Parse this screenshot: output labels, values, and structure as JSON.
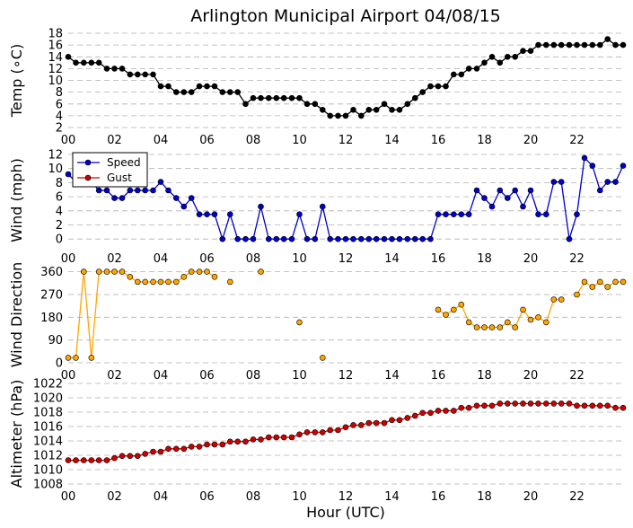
{
  "chart_data": {
    "type": "line",
    "title": "Arlington Municipal Airport 04/08/15",
    "xlabel": "Hour (UTC)",
    "x_ticks": [
      "00",
      "02",
      "04",
      "06",
      "08",
      "10",
      "12",
      "14",
      "16",
      "18",
      "20",
      "22"
    ],
    "xlim": [
      0,
      24
    ],
    "panels": [
      {
        "id": "temp",
        "ylabel": "Temp (∘C)",
        "ylim": [
          2,
          18
        ],
        "yticks": [
          2,
          4,
          6,
          8,
          10,
          12,
          14,
          16,
          18
        ],
        "series": [
          {
            "name": "Temperature",
            "color": "#000000",
            "style": "line-markers",
            "x": [
              0,
              0.33,
              0.67,
              1,
              1.33,
              1.67,
              2,
              2.33,
              2.67,
              3,
              3.33,
              3.67,
              4,
              4.33,
              4.67,
              5,
              5.33,
              5.67,
              6,
              6.33,
              6.67,
              7,
              7.33,
              7.67,
              8,
              8.33,
              8.67,
              9,
              9.33,
              9.67,
              10,
              10.33,
              10.67,
              11,
              11.33,
              11.67,
              12,
              12.33,
              12.67,
              13,
              13.33,
              13.67,
              14,
              14.33,
              14.67,
              15,
              15.33,
              15.67,
              16,
              16.33,
              16.67,
              17,
              17.33,
              17.67,
              18,
              18.33,
              18.67,
              19,
              19.33,
              19.67,
              20,
              20.33,
              20.67,
              21,
              21.33,
              21.67,
              22,
              22.33,
              22.67,
              23,
              23.33,
              23.67,
              24
            ],
            "y": [
              14,
              13,
              13,
              13,
              13,
              12,
              12,
              12,
              11,
              11,
              11,
              11,
              9,
              9,
              8,
              8,
              8,
              9,
              9,
              9,
              8,
              8,
              8,
              6,
              7,
              7,
              7,
              7,
              7,
              7,
              7,
              6,
              6,
              5,
              4,
              4,
              4,
              5,
              4,
              5,
              5,
              6,
              5,
              5,
              6,
              7,
              8,
              9,
              9,
              9,
              11,
              11,
              12,
              12,
              13,
              14,
              13,
              14,
              14,
              15,
              15,
              16,
              16,
              16,
              16,
              16,
              16,
              16,
              16,
              16,
              17,
              16,
              16
            ]
          }
        ]
      },
      {
        "id": "wind",
        "ylabel": "Wind (mph)",
        "ylim": [
          -1,
          12
        ],
        "yticks": [
          0,
          2,
          4,
          6,
          8,
          10,
          12
        ],
        "legend": {
          "location": "upper-left",
          "entries": [
            "Speed",
            "Gust"
          ]
        },
        "series": [
          {
            "name": "Speed",
            "color": "#0000cc",
            "style": "line-markers",
            "x": [
              0,
              0.33,
              0.67,
              1,
              1.33,
              1.67,
              2,
              2.33,
              2.67,
              3,
              3.33,
              3.67,
              4,
              4.33,
              4.67,
              5,
              5.33,
              5.67,
              6,
              6.33,
              6.67,
              7,
              7.33,
              7.67,
              8,
              8.33,
              8.67,
              9,
              9.33,
              9.67,
              10,
              10.33,
              10.67,
              11,
              11.33,
              11.67,
              12,
              12.33,
              12.67,
              13,
              13.33,
              13.67,
              14,
              14.33,
              14.67,
              15,
              15.33,
              15.67,
              16,
              16.33,
              16.67,
              17,
              17.33,
              17.67,
              18,
              18.33,
              18.67,
              19,
              19.33,
              19.67,
              20,
              20.33,
              20.67,
              21,
              21.33,
              21.67,
              22,
              22.33,
              22.67,
              23,
              23.33,
              23.67,
              24
            ],
            "y": [
              9.2,
              8.1,
              8.1,
              8.1,
              6.9,
              6.9,
              5.8,
              5.8,
              6.9,
              6.9,
              6.9,
              6.9,
              8.1,
              6.9,
              5.8,
              4.6,
              5.8,
              3.5,
              3.5,
              3.5,
              0,
              3.5,
              0,
              0,
              0,
              4.6,
              0,
              0,
              0,
              0,
              3.5,
              0,
              0,
              4.6,
              0,
              0,
              0,
              0,
              0,
              0,
              0,
              0,
              0,
              0,
              0,
              0,
              0,
              0,
              3.5,
              3.5,
              3.5,
              3.5,
              3.5,
              6.9,
              5.8,
              4.6,
              6.9,
              5.8,
              6.9,
              4.6,
              6.9,
              3.5,
              3.5,
              8.1,
              8.1,
              0,
              3.5,
              11.5,
              10.4,
              6.9,
              8.1,
              8.1,
              10.4
            ]
          },
          {
            "name": "Gust",
            "color": "#cc0000",
            "style": "markers",
            "x": [],
            "y": []
          }
        ]
      },
      {
        "id": "dir",
        "ylabel": "Wind Direction",
        "ylim": [
          0,
          380
        ],
        "yticks": [
          0,
          90,
          180,
          270,
          360
        ],
        "series": [
          {
            "name": "Wind Direction",
            "color": "#ffa500",
            "style": "line-markers-gapped",
            "x": [
              0,
              0.33,
              0.67,
              1,
              1.33,
              1.67,
              2,
              2.33,
              2.67,
              3,
              3.33,
              3.67,
              4,
              4.33,
              4.67,
              5,
              5.33,
              5.67,
              6,
              6.33,
              6.67,
              7,
              7.33,
              7.67,
              8,
              8.33,
              8.67,
              9,
              9.33,
              9.67,
              10,
              10.33,
              10.67,
              11,
              11.33,
              11.67,
              12,
              12.33,
              12.67,
              13,
              13.33,
              13.67,
              14,
              14.33,
              14.67,
              15,
              15.33,
              15.67,
              16,
              16.33,
              16.67,
              17,
              17.33,
              17.67,
              18,
              18.33,
              18.67,
              19,
              19.33,
              19.67,
              20,
              20.33,
              20.67,
              21,
              21.33,
              21.67,
              22,
              22.33,
              22.67,
              23,
              23.33,
              23.67,
              24
            ],
            "y": [
              20,
              20,
              360,
              20,
              360,
              360,
              360,
              360,
              340,
              320,
              320,
              320,
              320,
              320,
              320,
              340,
              360,
              360,
              360,
              340,
              null,
              320,
              null,
              null,
              null,
              360,
              null,
              null,
              null,
              null,
              160,
              null,
              null,
              20,
              null,
              null,
              null,
              null,
              null,
              null,
              null,
              null,
              null,
              null,
              null,
              null,
              null,
              null,
              210,
              190,
              210,
              230,
              160,
              140,
              140,
              140,
              140,
              160,
              140,
              210,
              170,
              180,
              160,
              250,
              250,
              null,
              270,
              320,
              300,
              320,
              300,
              320,
              320
            ]
          }
        ]
      },
      {
        "id": "alt",
        "ylabel": "Altimeter (hPa)",
        "ylim": [
          1008,
          1022
        ],
        "yticks": [
          1008,
          1010,
          1012,
          1014,
          1016,
          1018,
          1020,
          1022
        ],
        "series": [
          {
            "name": "Altimeter",
            "color": "#cc0000",
            "style": "line-markers",
            "x": [
              0,
              0.33,
              0.67,
              1,
              1.33,
              1.67,
              2,
              2.33,
              2.67,
              3,
              3.33,
              3.67,
              4,
              4.33,
              4.67,
              5,
              5.33,
              5.67,
              6,
              6.33,
              6.67,
              7,
              7.33,
              7.67,
              8,
              8.33,
              8.67,
              9,
              9.33,
              9.67,
              10,
              10.33,
              10.67,
              11,
              11.33,
              11.67,
              12,
              12.33,
              12.67,
              13,
              13.33,
              13.67,
              14,
              14.33,
              14.67,
              15,
              15.33,
              15.67,
              16,
              16.33,
              16.67,
              17,
              17.33,
              17.67,
              18,
              18.33,
              18.67,
              19,
              19.33,
              19.67,
              20,
              20.33,
              20.67,
              21,
              21.33,
              21.67,
              22,
              22.33,
              22.67,
              23,
              23.33,
              23.67,
              24
            ],
            "y": [
              1011.3,
              1011.3,
              1011.3,
              1011.3,
              1011.3,
              1011.3,
              1011.6,
              1011.9,
              1011.9,
              1011.9,
              1012.2,
              1012.5,
              1012.5,
              1012.9,
              1012.9,
              1012.9,
              1013.2,
              1013.2,
              1013.5,
              1013.5,
              1013.5,
              1013.9,
              1013.9,
              1013.9,
              1014.2,
              1014.2,
              1014.5,
              1014.5,
              1014.5,
              1014.5,
              1014.9,
              1015.2,
              1015.2,
              1015.2,
              1015.5,
              1015.5,
              1015.9,
              1016.2,
              1016.2,
              1016.5,
              1016.5,
              1016.5,
              1016.9,
              1016.9,
              1017.2,
              1017.5,
              1017.9,
              1017.9,
              1018.2,
              1018.2,
              1018.2,
              1018.6,
              1018.6,
              1018.9,
              1018.9,
              1018.9,
              1019.2,
              1019.2,
              1019.2,
              1019.2,
              1019.2,
              1019.2,
              1019.2,
              1019.2,
              1019.2,
              1019.2,
              1018.9,
              1018.9,
              1018.9,
              1018.9,
              1018.9,
              1018.6,
              1018.6
            ]
          }
        ]
      }
    ]
  }
}
